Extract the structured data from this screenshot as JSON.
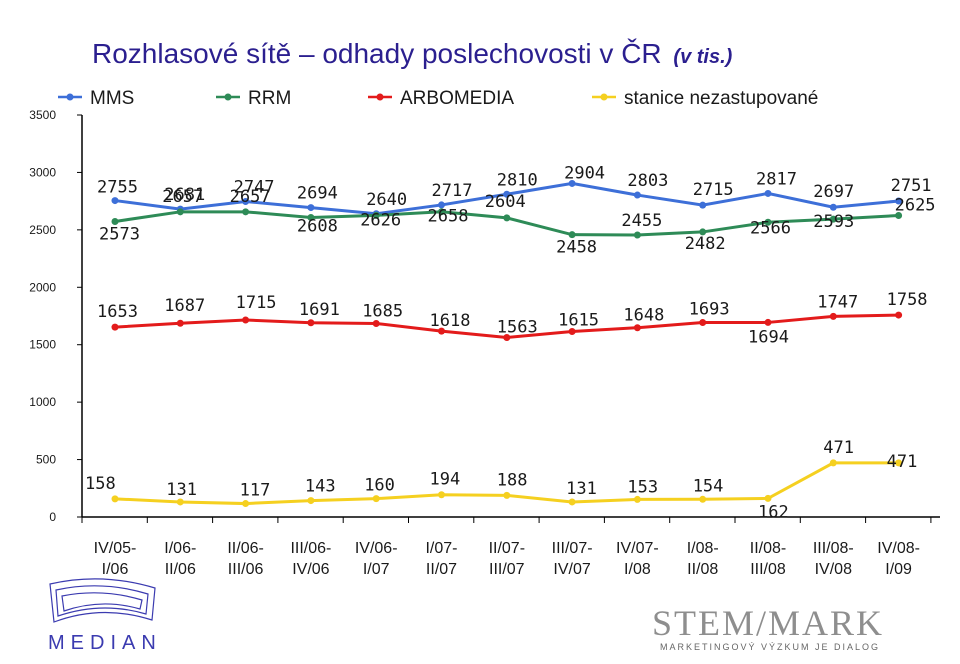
{
  "title": {
    "main": "Rozhlasové sítě – odhady poslechovosti v ČR",
    "sub": "(v tis.)"
  },
  "chart_data": {
    "type": "line",
    "categories": [
      [
        "IV/05-",
        "I/06"
      ],
      [
        "I/06-",
        "II/06"
      ],
      [
        "II/06-",
        "III/06"
      ],
      [
        "III/06-",
        "IV/06"
      ],
      [
        "IV/06-",
        "I/07"
      ],
      [
        "I/07-",
        "II/07"
      ],
      [
        "II/07-",
        "III/07"
      ],
      [
        "III/07-",
        "IV/07"
      ],
      [
        "IV/07-",
        "I/08"
      ],
      [
        "I/08-",
        "II/08"
      ],
      [
        "II/08-",
        "III/08"
      ],
      [
        "III/08-",
        "IV/08"
      ],
      [
        "IV/08-",
        "I/09"
      ]
    ],
    "ylim": [
      0,
      3500
    ],
    "yticks": [
      0,
      500,
      1000,
      1500,
      2000,
      2500,
      3000,
      3500
    ],
    "grid": false,
    "legend_position": "top",
    "series": [
      {
        "name": "MMS",
        "color": "#3d6fd8",
        "values": [
          2755,
          2681,
          2747,
          2694,
          2640,
          2717,
          2810,
          2904,
          2803,
          2715,
          2817,
          2697,
          2751
        ]
      },
      {
        "name": "RRM",
        "color": "#2e8b57",
        "values": [
          2573,
          2657,
          2657,
          2608,
          2626,
          2658,
          2604,
          2458,
          2455,
          2482,
          2566,
          2593,
          2625
        ]
      },
      {
        "name": "ARBOMEDIA",
        "color": "#e31b1b",
        "values": [
          1653,
          1687,
          1715,
          1691,
          1685,
          1618,
          1563,
          1615,
          1648,
          1693,
          1694,
          1747,
          1758
        ]
      },
      {
        "name": "stanice nezastupované",
        "color": "#f5d020",
        "values": [
          158,
          131,
          117,
          143,
          160,
          194,
          188,
          131,
          153,
          154,
          162,
          471,
          471
        ]
      }
    ]
  },
  "logos": {
    "median": "MEDIAN",
    "stemmark": "STEM/MARK",
    "stemmark_tagline": "MARKETINGOVÝ VÝZKUM JE DIALOG"
  }
}
